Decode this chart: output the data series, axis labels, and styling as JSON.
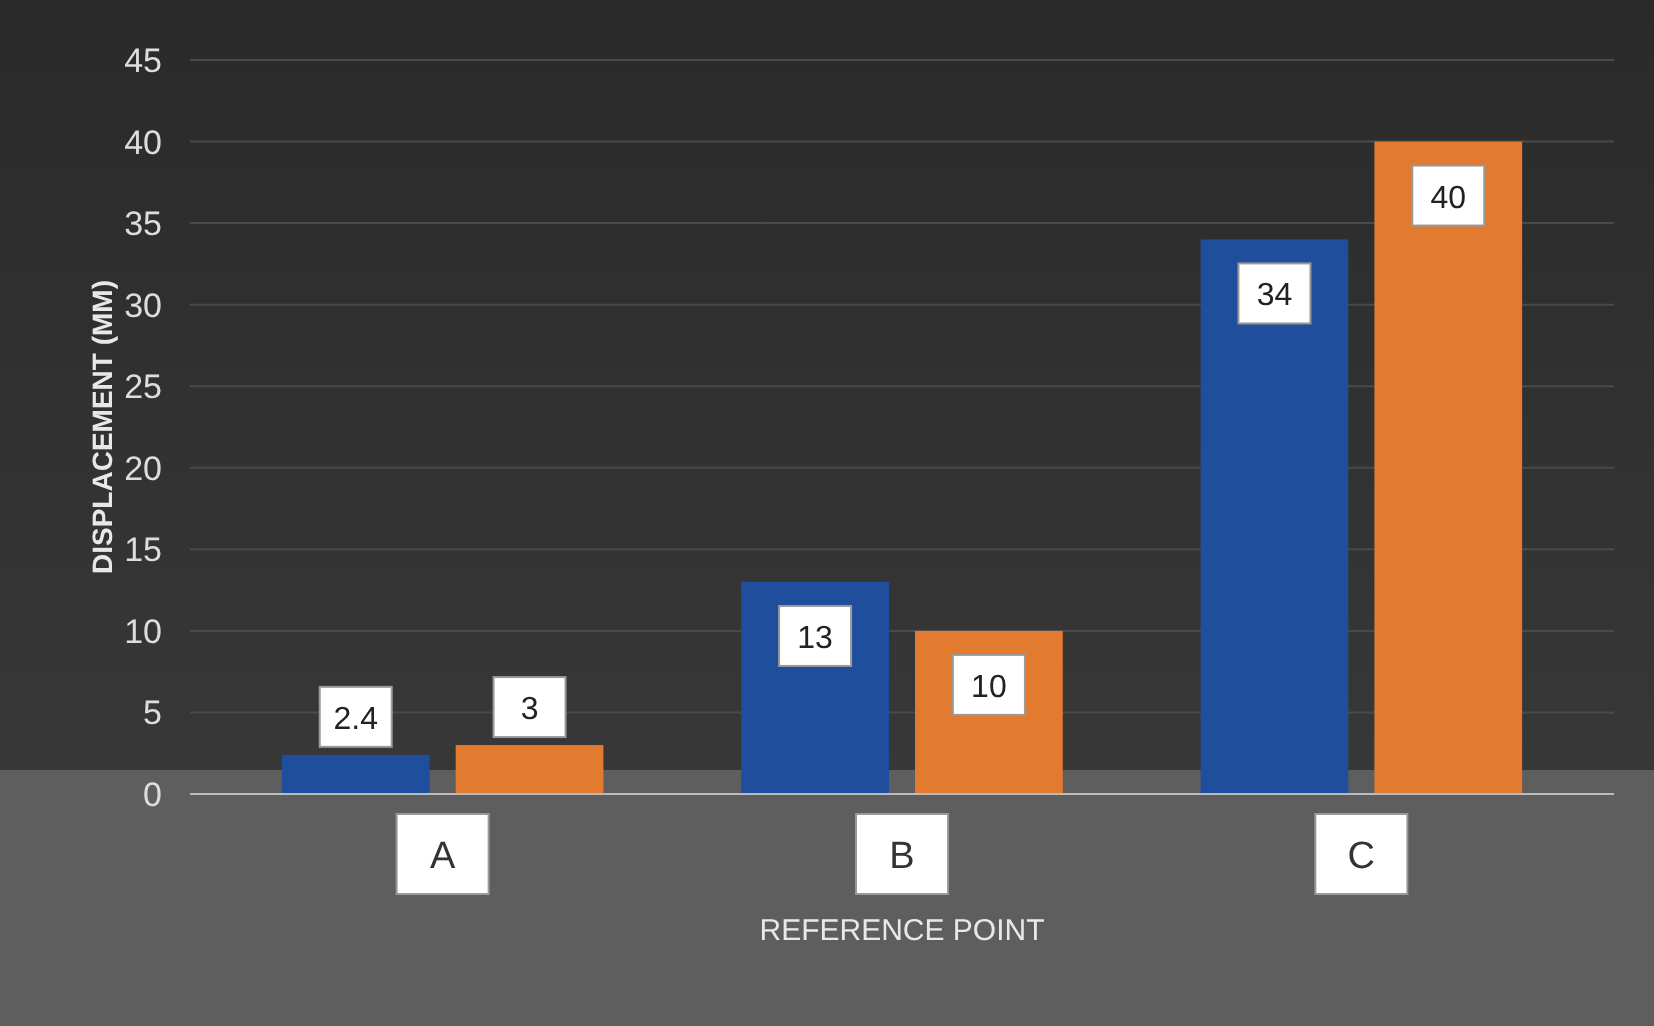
{
  "chart_data": {
    "type": "bar",
    "xlabel": "REFERENCE POINT",
    "ylabel": "DISPLACEMENT (MM)",
    "categories": [
      "A",
      "B",
      "C"
    ],
    "series": [
      {
        "color": "#1f4e9c",
        "values": [
          2.4,
          13,
          34
        ]
      },
      {
        "color": "#e27b2f",
        "values": [
          3,
          10,
          40
        ]
      }
    ],
    "ylim": [
      0,
      45
    ],
    "yticks": [
      0,
      5,
      10,
      15,
      20,
      25,
      30,
      35,
      40,
      45
    ],
    "grid": "y",
    "data_labels": true
  }
}
